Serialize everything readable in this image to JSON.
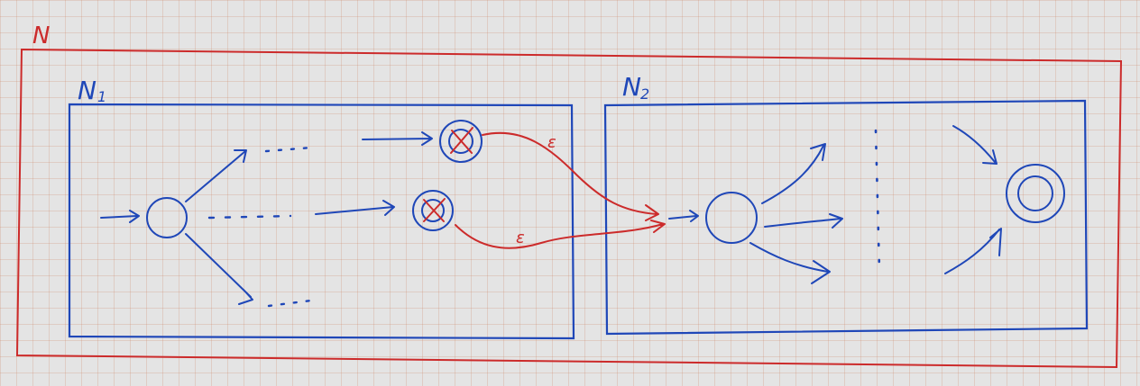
{
  "diagram": {
    "outer_label": "N",
    "n1_label": "N",
    "n1_subscript": "1",
    "n2_label": "N",
    "n2_subscript": "2",
    "epsilon_top": "ε",
    "epsilon_bottom": "ε",
    "colors": {
      "outer": "#cc2b2b",
      "automaton": "#1f47b8",
      "epsilon": "#cc2b2b",
      "background": "#e4e4e4"
    }
  }
}
